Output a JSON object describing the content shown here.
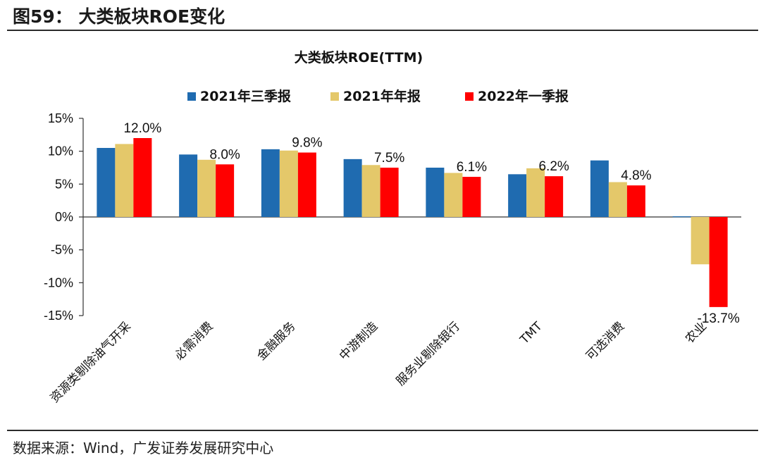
{
  "header": {
    "figure_title": "图59：  大类板块ROE变化"
  },
  "footer": {
    "source": "数据来源：Wind，广发证券发展研究中心"
  },
  "chart_data": {
    "type": "bar",
    "title": "大类板块ROE(TTM)",
    "categories": [
      "资源类剔除油气开采",
      "必需消费",
      "金融服务",
      "中游制造",
      "服务业剔除银行",
      "TMT",
      "可选消费",
      "农业"
    ],
    "series": [
      {
        "name": "2021年三季报",
        "color": "#1f6bb0",
        "values": [
          10.5,
          9.5,
          10.3,
          8.8,
          7.5,
          6.5,
          8.6,
          0.1
        ]
      },
      {
        "name": "2021年年报",
        "color": "#e4c86a",
        "values": [
          11.1,
          8.7,
          10.1,
          7.9,
          6.7,
          7.4,
          5.3,
          -7.2
        ]
      },
      {
        "name": "2022年一季报",
        "color": "#ff0000",
        "values": [
          12.0,
          8.0,
          9.8,
          7.5,
          6.1,
          6.2,
          4.8,
          -13.7
        ]
      }
    ],
    "data_labels": [
      "12.0%",
      "8.0%",
      "9.8%",
      "7.5%",
      "6.1%",
      "6.2%",
      "4.8%",
      "-13.7%"
    ],
    "y_ticks": [
      "15%",
      "10%",
      "5%",
      "0%",
      "-5%",
      "-10%",
      "-15%"
    ],
    "ylim": [
      -15,
      15
    ],
    "legend_position": "top",
    "grid": false
  }
}
